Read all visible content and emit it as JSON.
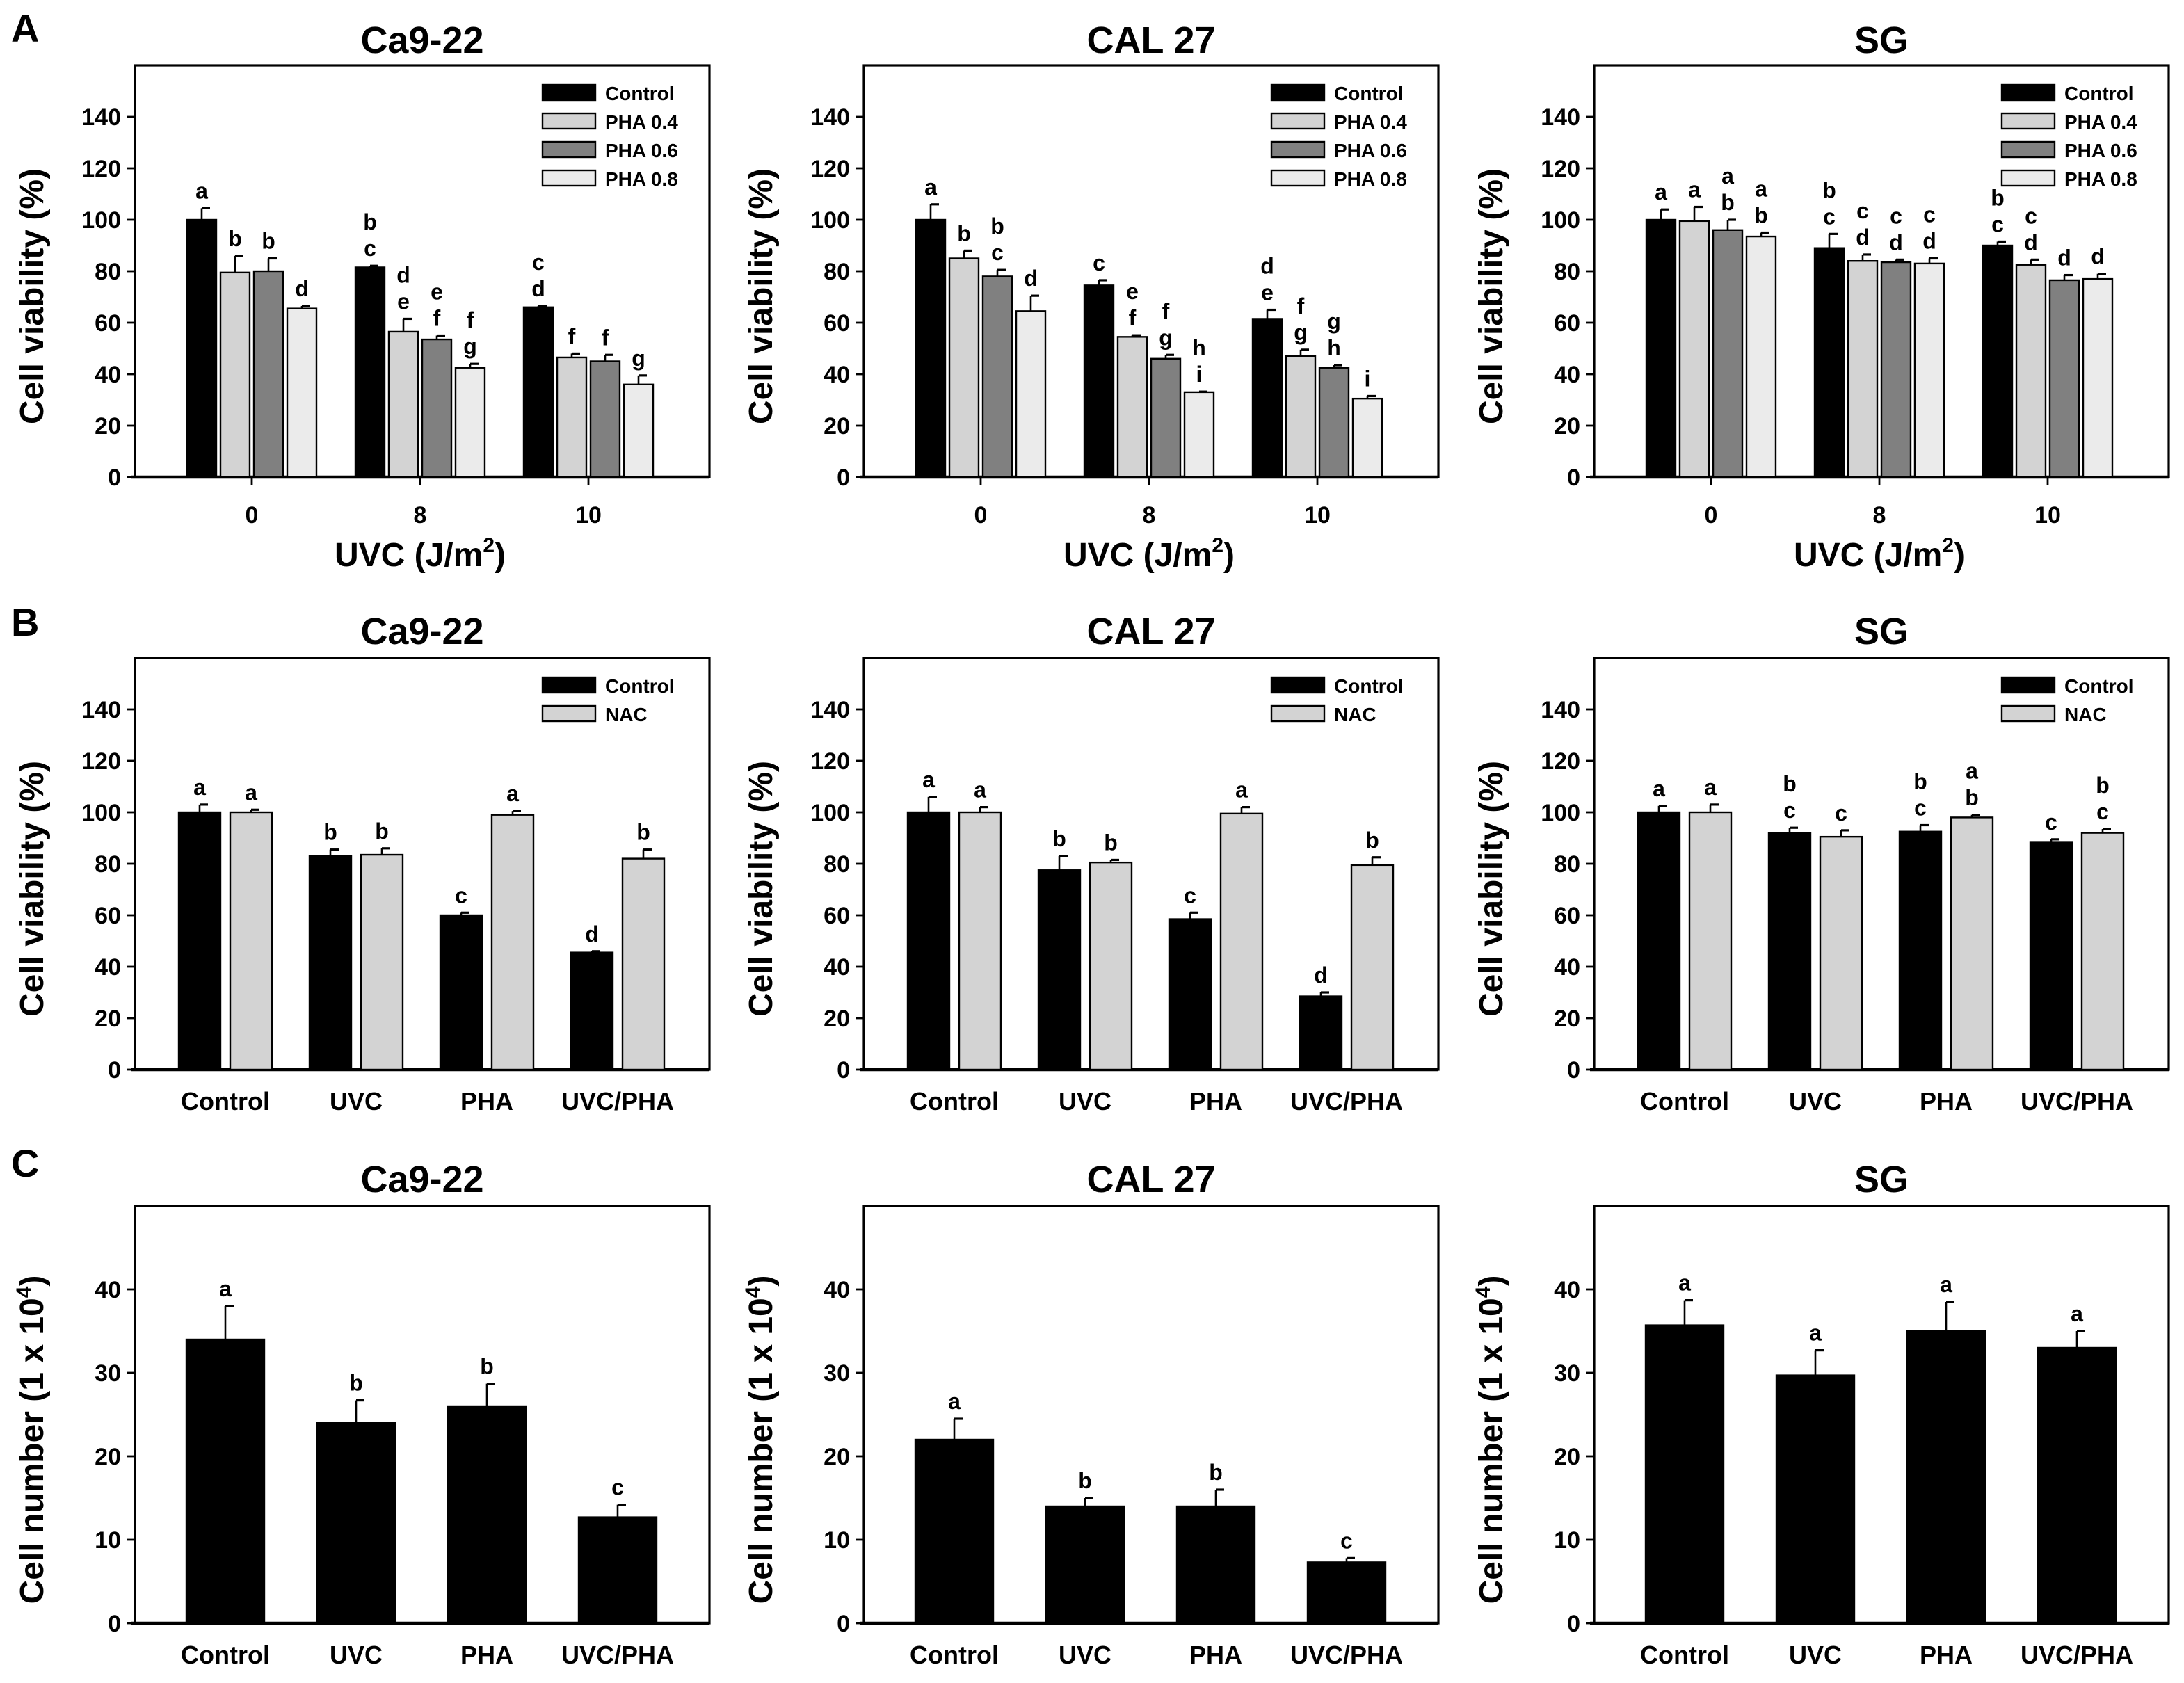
{
  "figure": {
    "panel_labels": [
      "A",
      "B",
      "C"
    ]
  },
  "chart_data": [
    {
      "type": "bar",
      "title": "Ca9-22",
      "ylabel": {
        "text": "Cell viability (%)",
        "sup": "",
        "tail": ""
      },
      "xlabel": {
        "text": "UVC (J/m",
        "sup": "2",
        "tail": ")"
      },
      "ylim": [
        0,
        160
      ],
      "yticks": [
        "0",
        "20",
        "40",
        "60",
        "80",
        "100",
        "120",
        "140"
      ],
      "categories": [
        "0",
        "8",
        "10"
      ],
      "legend": "top-right",
      "series": [
        {
          "name": "Control",
          "color": "#000000",
          "values": [
            100,
            81.5,
            66
          ],
          "errors": [
            4.5,
            0.6,
            0.5
          ],
          "letters": [
            [
              "a"
            ],
            [
              "b",
              "c"
            ],
            [
              "c",
              "d"
            ]
          ]
        },
        {
          "name": "PHA 0.4",
          "color": "#d3d3d3",
          "values": [
            79.5,
            56.5,
            46.5
          ],
          "errors": [
            6.5,
            5,
            1.5
          ],
          "letters": [
            [
              "b"
            ],
            [
              "d",
              "e"
            ],
            [
              "f"
            ]
          ]
        },
        {
          "name": "PHA 0.6",
          "color": "#808080",
          "values": [
            80,
            53.5,
            45
          ],
          "errors": [
            5,
            1.5,
            2.5
          ],
          "letters": [
            [
              "b"
            ],
            [
              "e",
              "f"
            ],
            [
              "f"
            ]
          ]
        },
        {
          "name": "PHA 0.8",
          "color": "#ebebeb",
          "values": [
            65.5,
            42.5,
            36
          ],
          "errors": [
            1,
            1.5,
            3.5
          ],
          "letters": [
            [
              "d"
            ],
            [
              "f",
              "g"
            ],
            [
              "g"
            ]
          ]
        }
      ]
    },
    {
      "type": "bar",
      "title": "CAL 27",
      "ylabel": {
        "text": "Cell viability (%)",
        "sup": "",
        "tail": ""
      },
      "xlabel": {
        "text": "UVC (J/m",
        "sup": "2",
        "tail": ")"
      },
      "ylim": [
        0,
        160
      ],
      "yticks": [
        "0",
        "20",
        "40",
        "60",
        "80",
        "100",
        "120",
        "140"
      ],
      "categories": [
        "0",
        "8",
        "10"
      ],
      "legend": "top-right",
      "series": [
        {
          "name": "Control",
          "color": "#000000",
          "values": [
            100,
            74.5,
            61.5
          ],
          "errors": [
            6,
            2,
            3.5
          ],
          "letters": [
            [
              "a"
            ],
            [
              "c"
            ],
            [
              "d",
              "e"
            ]
          ]
        },
        {
          "name": "PHA 0.4",
          "color": "#d3d3d3",
          "values": [
            85,
            54.5,
            47
          ],
          "errors": [
            3,
            0.6,
            2.5
          ],
          "letters": [
            [
              "b"
            ],
            [
              "e",
              "f"
            ],
            [
              "f",
              "g"
            ]
          ]
        },
        {
          "name": "PHA 0.6",
          "color": "#808080",
          "values": [
            78,
            46,
            42.5
          ],
          "errors": [
            2.5,
            1.5,
            1
          ],
          "letters": [
            [
              "b",
              "c"
            ],
            [
              "f",
              "g"
            ],
            [
              "g",
              "h"
            ]
          ]
        },
        {
          "name": "PHA 0.8",
          "color": "#ebebeb",
          "values": [
            64.5,
            33,
            30.5
          ],
          "errors": [
            6,
            0.2,
            1
          ],
          "letters": [
            [
              "d"
            ],
            [
              "h",
              "i"
            ],
            [
              "i"
            ]
          ]
        }
      ]
    },
    {
      "type": "bar",
      "title": "SG",
      "ylabel": {
        "text": "Cell viability (%)",
        "sup": "",
        "tail": ""
      },
      "xlabel": {
        "text": "UVC (J/m",
        "sup": "2",
        "tail": ")"
      },
      "ylim": [
        0,
        160
      ],
      "yticks": [
        "0",
        "20",
        "40",
        "60",
        "80",
        "100",
        "120",
        "140"
      ],
      "categories": [
        "0",
        "8",
        "10"
      ],
      "legend": "top-right",
      "series": [
        {
          "name": "Control",
          "color": "#000000",
          "values": [
            100,
            89,
            90
          ],
          "errors": [
            4,
            5.5,
            1.5
          ],
          "letters": [
            [
              "a"
            ],
            [
              "b",
              "c"
            ],
            [
              "b",
              "c"
            ]
          ]
        },
        {
          "name": "PHA 0.4",
          "color": "#d3d3d3",
          "values": [
            99.5,
            84,
            82.5
          ],
          "errors": [
            5.5,
            2.5,
            2
          ],
          "letters": [
            [
              "a"
            ],
            [
              "c",
              "d"
            ],
            [
              "c",
              "d"
            ]
          ]
        },
        {
          "name": "PHA 0.6",
          "color": "#808080",
          "values": [
            96,
            83.5,
            76.5
          ],
          "errors": [
            4,
            1,
            2
          ],
          "letters": [
            [
              "a",
              "b"
            ],
            [
              "c",
              "d"
            ],
            [
              "d"
            ]
          ]
        },
        {
          "name": "PHA 0.8",
          "color": "#ebebeb",
          "values": [
            93.5,
            83,
            77
          ],
          "errors": [
            1.5,
            2,
            2
          ],
          "letters": [
            [
              "a",
              "b"
            ],
            [
              "c",
              "d"
            ],
            [
              "d"
            ]
          ]
        }
      ]
    },
    {
      "type": "bar",
      "title": "Ca9-22",
      "ylabel": {
        "text": "Cell viability (%)",
        "sup": "",
        "tail": ""
      },
      "ylim": [
        0,
        160
      ],
      "yticks": [
        "0",
        "20",
        "40",
        "60",
        "80",
        "100",
        "120",
        "140"
      ],
      "categories": [
        "Control",
        "UVC",
        "PHA",
        "UVC/PHA"
      ],
      "legend": "top-right",
      "series": [
        {
          "name": "Control",
          "color": "#000000",
          "values": [
            100,
            83,
            60,
            45.5
          ],
          "errors": [
            3,
            2.5,
            1,
            0.5
          ],
          "letters": [
            [
              "a"
            ],
            [
              "b"
            ],
            [
              "c"
            ],
            [
              "d"
            ]
          ]
        },
        {
          "name": "NAC",
          "color": "#d3d3d3",
          "values": [
            100,
            83.5,
            99,
            82
          ],
          "errors": [
            1,
            2.5,
            1.5,
            3.5
          ],
          "letters": [
            [
              "a"
            ],
            [
              "b"
            ],
            [
              "a"
            ],
            [
              "b"
            ]
          ]
        }
      ]
    },
    {
      "type": "bar",
      "title": "CAL 27",
      "ylabel": {
        "text": "Cell viability (%)",
        "sup": "",
        "tail": ""
      },
      "ylim": [
        0,
        160
      ],
      "yticks": [
        "0",
        "20",
        "40",
        "60",
        "80",
        "100",
        "120",
        "140"
      ],
      "categories": [
        "Control",
        "UVC",
        "PHA",
        "UVC/PHA"
      ],
      "legend": "top-right",
      "series": [
        {
          "name": "Control",
          "color": "#000000",
          "values": [
            100,
            77.5,
            58.5,
            28.5
          ],
          "errors": [
            6,
            5.5,
            2.5,
            1.5
          ],
          "letters": [
            [
              "a"
            ],
            [
              "b"
            ],
            [
              "c"
            ],
            [
              "d"
            ]
          ]
        },
        {
          "name": "NAC",
          "color": "#d3d3d3",
          "values": [
            100,
            80.5,
            99.5,
            79.5
          ],
          "errors": [
            2,
            1,
            2.5,
            3
          ],
          "letters": [
            [
              "a"
            ],
            [
              "b"
            ],
            [
              "a"
            ],
            [
              "b"
            ]
          ]
        }
      ]
    },
    {
      "type": "bar",
      "title": "SG",
      "ylabel": {
        "text": "Cell viability (%)",
        "sup": "",
        "tail": ""
      },
      "ylim": [
        0,
        160
      ],
      "yticks": [
        "0",
        "20",
        "40",
        "60",
        "80",
        "100",
        "120",
        "140"
      ],
      "categories": [
        "Control",
        "UVC",
        "PHA",
        "UVC/PHA"
      ],
      "legend": "top-right",
      "series": [
        {
          "name": "Control",
          "color": "#000000",
          "values": [
            100,
            92,
            92.5,
            88.5
          ],
          "errors": [
            2.5,
            2,
            2.5,
            1
          ],
          "letters": [
            [
              "a"
            ],
            [
              "b",
              "c"
            ],
            [
              "b",
              "c"
            ],
            [
              "c"
            ]
          ]
        },
        {
          "name": "NAC",
          "color": "#d3d3d3",
          "values": [
            100,
            90.5,
            98,
            92
          ],
          "errors": [
            3,
            2.5,
            1,
            1.5
          ],
          "letters": [
            [
              "a"
            ],
            [
              "c"
            ],
            [
              "a",
              "b"
            ],
            [
              "b",
              "c"
            ]
          ]
        }
      ]
    },
    {
      "type": "bar",
      "title": "Ca9-22",
      "ylabel": {
        "text": "Cell number (1 x 10",
        "sup": "4",
        "tail": ")"
      },
      "ylim": [
        0,
        50
      ],
      "yticks": [
        "0",
        "10",
        "20",
        "30",
        "40"
      ],
      "categories": [
        "Control",
        "UVC",
        "PHA",
        "UVC/PHA"
      ],
      "legend": "none",
      "series": [
        {
          "name": "Cell number",
          "color": "#000000",
          "values": [
            34,
            24,
            26,
            12.7
          ],
          "errors": [
            4,
            2.7,
            2.7,
            1.5
          ],
          "letters": [
            [
              "a"
            ],
            [
              "b"
            ],
            [
              "b"
            ],
            [
              "c"
            ]
          ]
        }
      ]
    },
    {
      "type": "bar",
      "title": "CAL 27",
      "ylabel": {
        "text": "Cell number (1 x 10",
        "sup": "4",
        "tail": ")"
      },
      "ylim": [
        0,
        50
      ],
      "yticks": [
        "0",
        "10",
        "20",
        "30",
        "40"
      ],
      "categories": [
        "Control",
        "UVC",
        "PHA",
        "UVC/PHA"
      ],
      "legend": "none",
      "series": [
        {
          "name": "Cell number",
          "color": "#000000",
          "values": [
            22,
            14,
            14,
            7.3
          ],
          "errors": [
            2.5,
            1,
            2,
            0.5
          ],
          "letters": [
            [
              "a"
            ],
            [
              "b"
            ],
            [
              "b"
            ],
            [
              "c"
            ]
          ]
        }
      ]
    },
    {
      "type": "bar",
      "title": "SG",
      "ylabel": {
        "text": "Cell number (1 x 10",
        "sup": "4",
        "tail": ")"
      },
      "ylim": [
        0,
        50
      ],
      "yticks": [
        "0",
        "10",
        "20",
        "30",
        "40"
      ],
      "categories": [
        "Control",
        "UVC",
        "PHA",
        "UVC/PHA"
      ],
      "legend": "none",
      "series": [
        {
          "name": "Cell number",
          "color": "#000000",
          "values": [
            35.7,
            29.7,
            35,
            33
          ],
          "errors": [
            3,
            3,
            3.5,
            2
          ],
          "letters": [
            [
              "a"
            ],
            [
              "a"
            ],
            [
              "a"
            ],
            [
              "a"
            ]
          ]
        }
      ]
    }
  ]
}
